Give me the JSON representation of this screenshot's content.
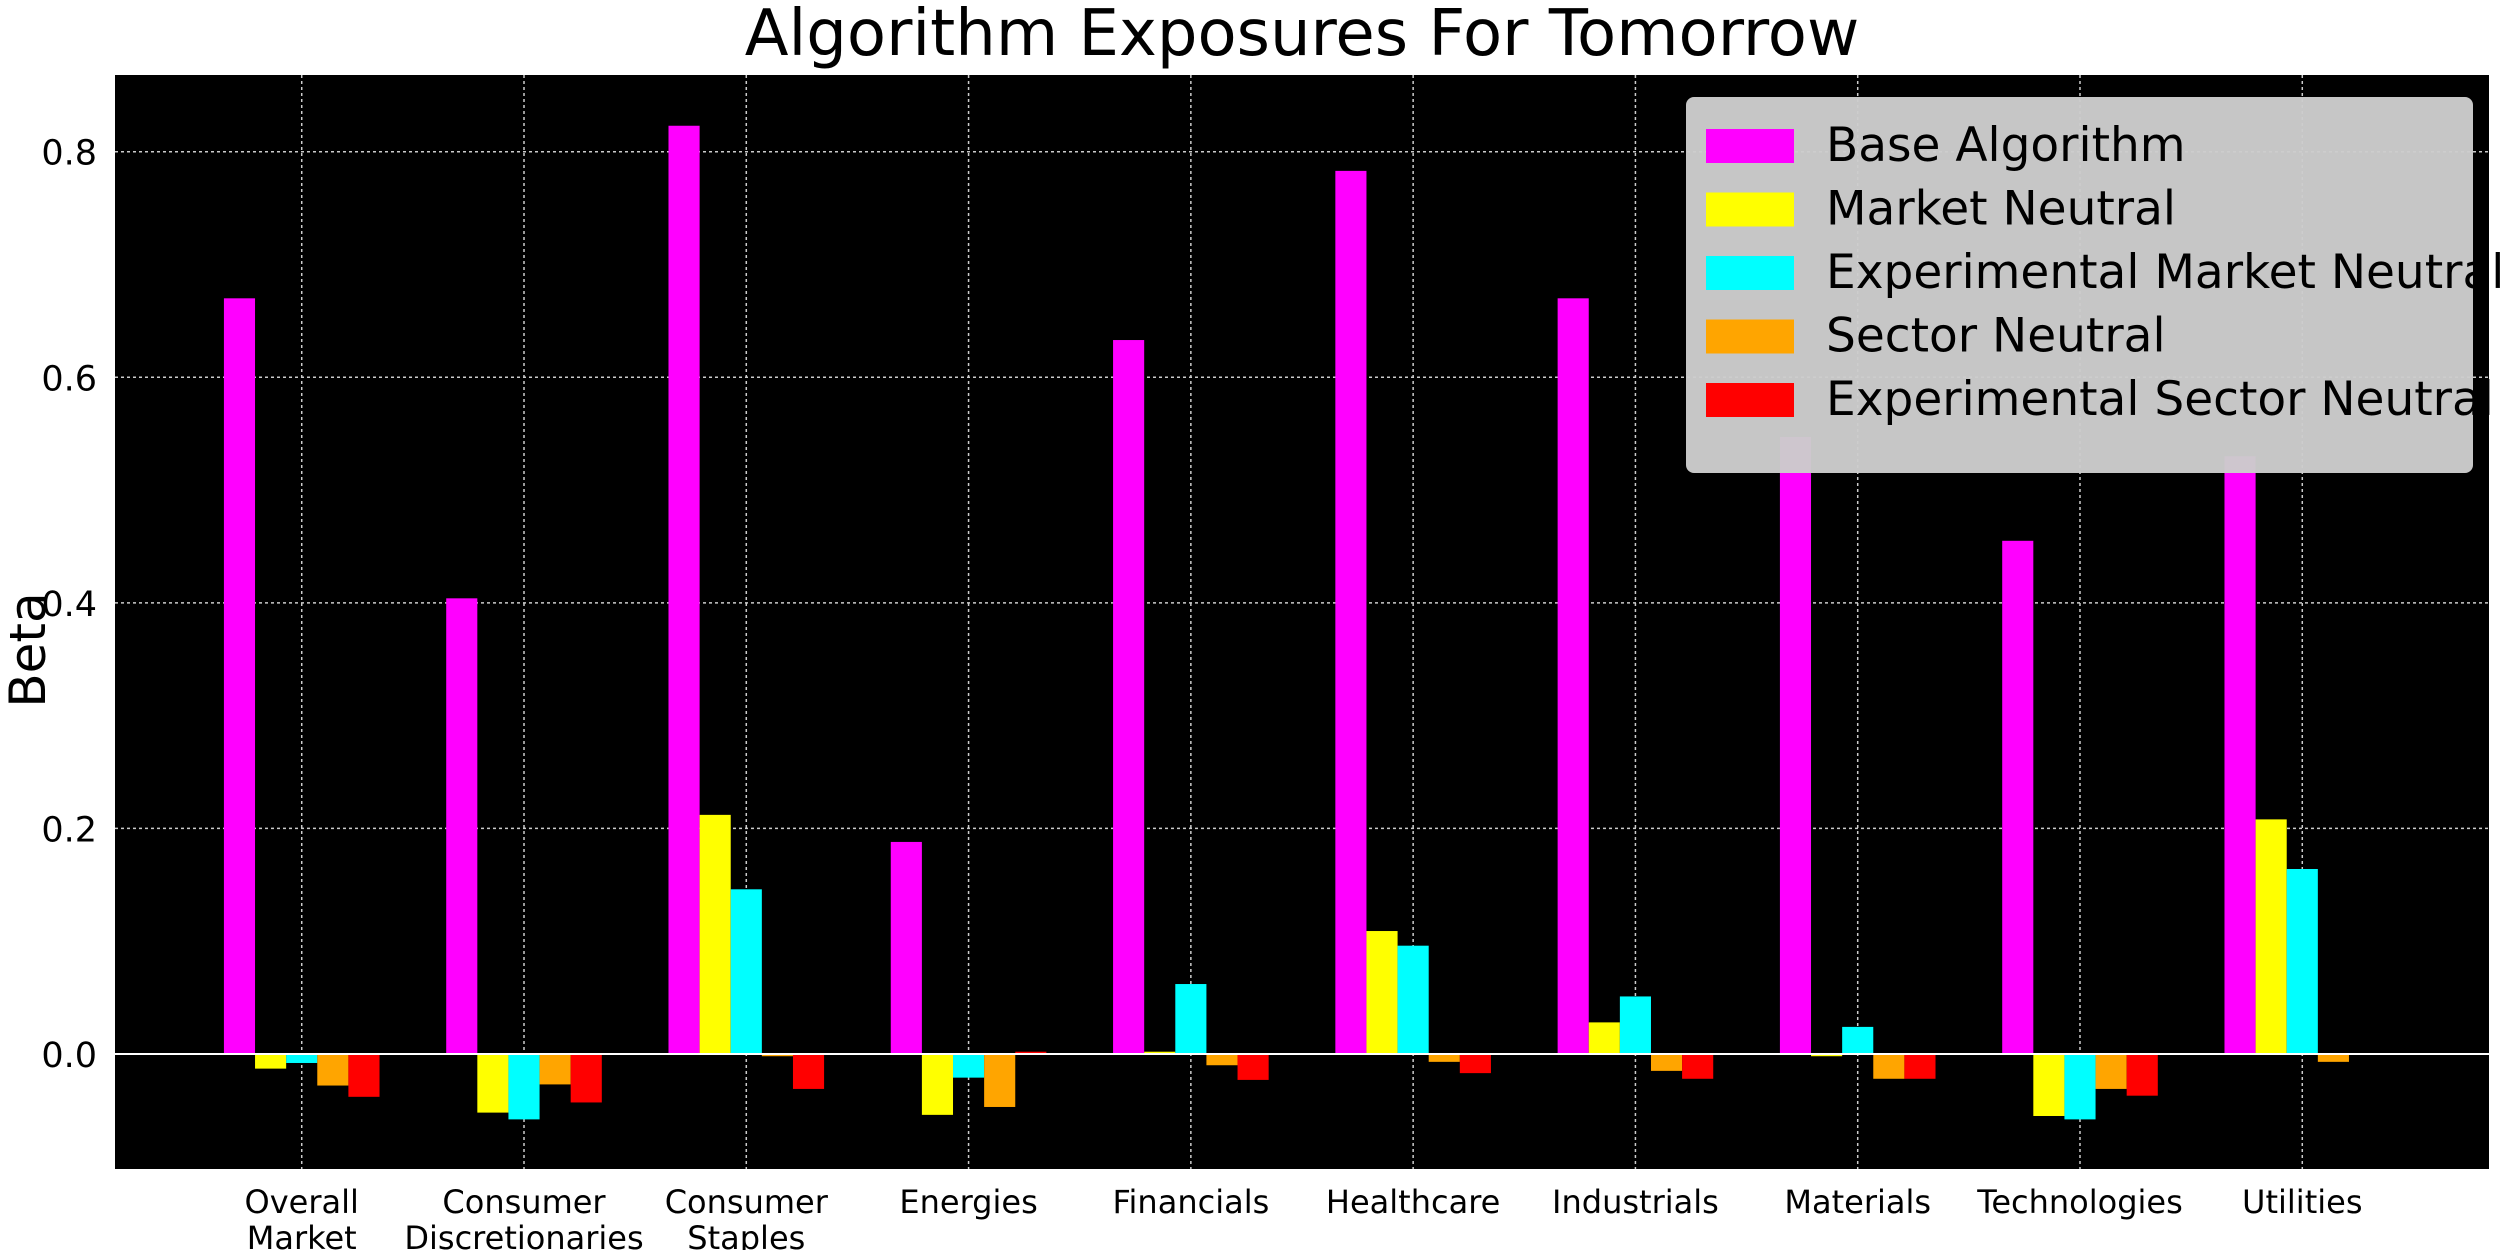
{
  "chart_data": {
    "type": "bar",
    "title": "Algorithm Exposures For Tomorrow",
    "xlabel": "",
    "ylabel": "Beta",
    "ylim": [
      -0.102,
      0.868
    ],
    "yticks": [
      0.0,
      0.2,
      0.4,
      0.6,
      0.8
    ],
    "ytick_labels": [
      "0.0",
      "0.2",
      "0.4",
      "0.6",
      "0.8"
    ],
    "grid": true,
    "legend_position": "top-right",
    "categories": [
      [
        "Overall",
        "Market"
      ],
      [
        "Consumer",
        "Discretionaries"
      ],
      [
        "Consumer",
        "Staples"
      ],
      [
        "Energies"
      ],
      [
        "Financials"
      ],
      [
        "Healthcare"
      ],
      [
        "Industrials"
      ],
      [
        "Materials"
      ],
      [
        "Technologies"
      ],
      [
        "Utilities"
      ]
    ],
    "series": [
      {
        "name": "Base Algorithm",
        "color": "#ff00ff",
        "values": [
          0.67,
          0.404,
          0.823,
          0.188,
          0.633,
          0.783,
          0.67,
          0.547,
          0.455,
          0.53
        ]
      },
      {
        "name": "Market Neutral",
        "color": "#ffff00",
        "values": [
          -0.013,
          -0.052,
          0.212,
          -0.054,
          0.002,
          0.109,
          0.028,
          -0.002,
          -0.055,
          0.208
        ]
      },
      {
        "name": "Experimental Market Neutral",
        "color": "#00ffff",
        "values": [
          -0.008,
          -0.058,
          0.146,
          -0.021,
          0.062,
          0.096,
          0.051,
          0.024,
          -0.058,
          0.164
        ]
      },
      {
        "name": "Sector Neutral",
        "color": "#ffa500",
        "values": [
          -0.028,
          -0.027,
          -0.002,
          -0.047,
          -0.01,
          -0.007,
          -0.015,
          -0.022,
          -0.031,
          -0.007
        ]
      },
      {
        "name": "Experimental Sector Neutral",
        "color": "#ff0000",
        "values": [
          -0.038,
          -0.043,
          -0.031,
          0.002,
          -0.023,
          -0.017,
          -0.022,
          -0.022,
          -0.037,
          0.0
        ]
      }
    ]
  }
}
